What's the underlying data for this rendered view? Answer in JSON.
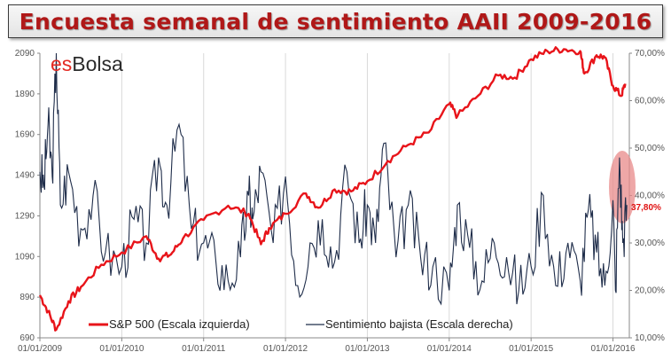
{
  "title": "Encuesta  semanal  de sentimiento AAII 2009-2016",
  "brand": {
    "prefix": "es",
    "suffix": "Bolsa"
  },
  "colors": {
    "sp500": "#e8141a",
    "bearish": "#1f2d4a",
    "highlight": "#e88a8a",
    "brand_prefix": "#e32a22",
    "brand_suffix": "#2b2b2b"
  },
  "chart_data": {
    "type": "line",
    "x_tick_labels": [
      "01/01/2009",
      "01/01/2010",
      "01/01/2011",
      "01/01/2012",
      "01/01/2013",
      "01/01/2014",
      "01/01/2015",
      "01/01/2016"
    ],
    "y_left": {
      "label": "S&P 500 (Escala izquierda)",
      "ticks": [
        "2090",
        "1890",
        "1690",
        "1490",
        "1290",
        "1090",
        "890",
        "690"
      ],
      "range": [
        690,
        2090
      ]
    },
    "y_right": {
      "label": "Sentimiento bajista (Escala derecha)",
      "ticks": [
        "70,00%",
        "60,00%",
        "50,00%",
        "40,00%",
        "30,00%",
        "20,00%",
        "10,00%"
      ],
      "range": [
        10,
        70
      ]
    },
    "annotation": "37,80%",
    "series": [
      {
        "name": "S&P 500 (Escala izquierda)",
        "axis": "left",
        "x": [
          2009.0,
          2009.1,
          2009.2,
          2009.35,
          2009.5,
          2009.75,
          2010.0,
          2010.3,
          2010.45,
          2010.6,
          2010.75,
          2011.0,
          2011.3,
          2011.55,
          2011.7,
          2011.8,
          2012.0,
          2012.25,
          2012.4,
          2012.6,
          2012.8,
          2013.0,
          2013.25,
          2013.5,
          2013.75,
          2014.0,
          2014.1,
          2014.35,
          2014.6,
          2014.8,
          2015.0,
          2015.2,
          2015.4,
          2015.6,
          2015.65,
          2015.8,
          2015.9,
          2016.0,
          2016.1,
          2016.15
        ],
        "y": [
          900,
          820,
          730,
          870,
          940,
          1050,
          1110,
          1190,
          1080,
          1100,
          1180,
          1270,
          1340,
          1300,
          1150,
          1230,
          1300,
          1400,
          1330,
          1420,
          1410,
          1460,
          1560,
          1640,
          1700,
          1840,
          1780,
          1880,
          1980,
          1970,
          2060,
          2100,
          2110,
          2100,
          1990,
          2080,
          2070,
          1930,
          1880,
          1940
        ]
      },
      {
        "name": "Sentimiento bajista (Escala derecha)",
        "axis": "right",
        "x": [
          2009.0,
          2009.05,
          2009.1,
          2009.15,
          2009.2,
          2009.25,
          2009.35,
          2009.5,
          2009.65,
          2009.8,
          2010.0,
          2010.15,
          2010.3,
          2010.45,
          2010.55,
          2010.7,
          2010.85,
          2011.0,
          2011.15,
          2011.3,
          2011.45,
          2011.55,
          2011.6,
          2011.7,
          2011.85,
          2012.0,
          2012.15,
          2012.3,
          2012.45,
          2012.6,
          2012.75,
          2012.9,
          2013.0,
          2013.1,
          2013.2,
          2013.35,
          2013.5,
          2013.65,
          2013.8,
          2014.0,
          2014.1,
          2014.25,
          2014.4,
          2014.55,
          2014.7,
          2014.85,
          2015.0,
          2015.15,
          2015.3,
          2015.45,
          2015.6,
          2015.7,
          2015.8,
          2015.9,
          2016.0,
          2016.03,
          2016.08,
          2016.12,
          2016.17
        ],
        "y": [
          45,
          42,
          55,
          44,
          70,
          38,
          45,
          33,
          40,
          28,
          25,
          35,
          30,
          48,
          38,
          55,
          33,
          30,
          26,
          22,
          27,
          40,
          35,
          45,
          30,
          44,
          21,
          30,
          35,
          26,
          45,
          30,
          38,
          30,
          51,
          27,
          38,
          27,
          25,
          20,
          38,
          29,
          22,
          30,
          27,
          20,
          25,
          40,
          21,
          30,
          22,
          37,
          28,
          21,
          39,
          20,
          48,
          30,
          38
        ]
      }
    ]
  }
}
